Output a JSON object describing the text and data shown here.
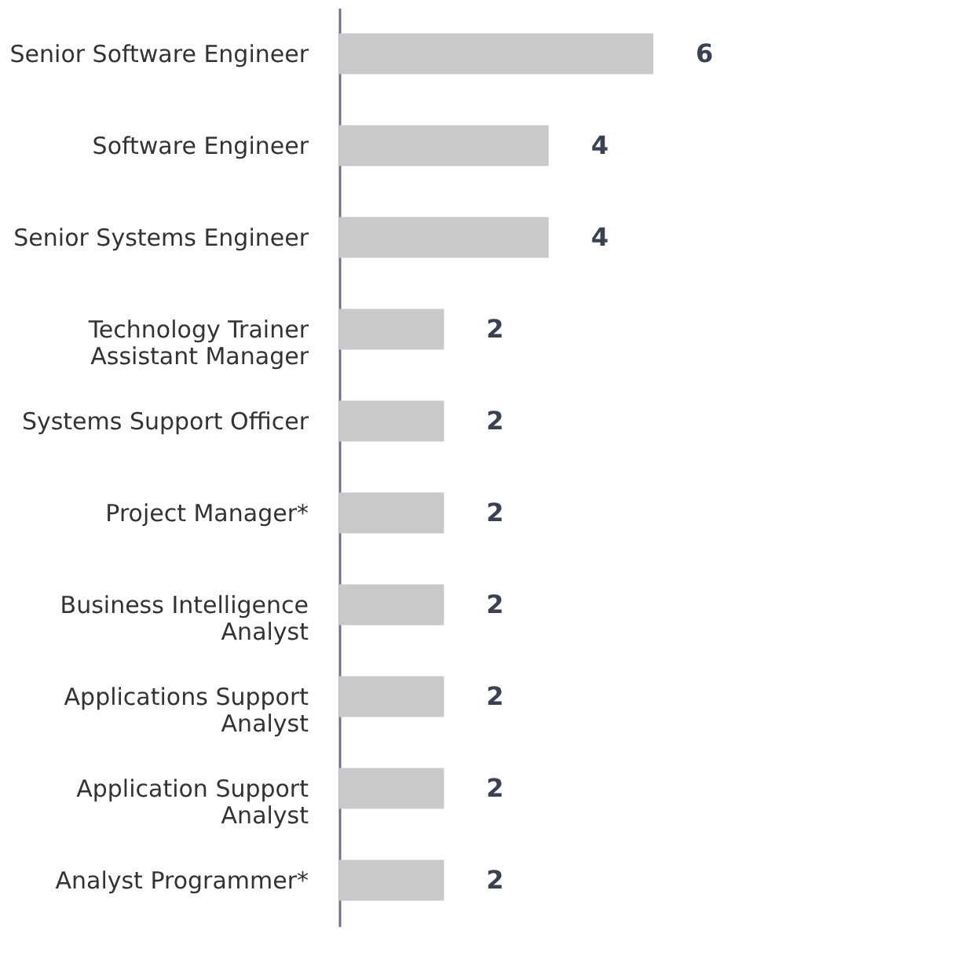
{
  "chart_data": {
    "type": "bar",
    "orientation": "horizontal",
    "data_labels": true,
    "categories": [
      "Senior Software Engineer",
      "Software Engineer",
      "Senior Systems Engineer",
      "Technology Trainer\nAssistant Manager",
      "Systems Support Officer",
      "Project Manager*",
      "Business Intelligence\nAnalyst",
      "Applications Support\nAnalyst",
      "Application Support\nAnalyst",
      "Analyst Programmer*"
    ],
    "values": [
      6,
      4,
      4,
      2,
      2,
      2,
      2,
      2,
      2,
      2
    ],
    "color": "#c8c9cb"
  }
}
